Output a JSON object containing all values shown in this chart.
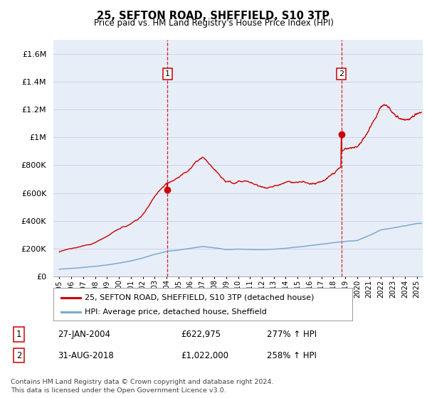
{
  "title": "25, SEFTON ROAD, SHEFFIELD, S10 3TP",
  "subtitle": "Price paid vs. HM Land Registry's House Price Index (HPI)",
  "legend_line1": "25, SEFTON ROAD, SHEFFIELD, S10 3TP (detached house)",
  "legend_line2": "HPI: Average price, detached house, Sheffield",
  "transaction1_label": "1",
  "transaction1_date": "27-JAN-2004",
  "transaction1_price": "£622,975",
  "transaction1_hpi": "277% ↑ HPI",
  "transaction1_year": 2004.07,
  "transaction1_value": 622975,
  "transaction2_label": "2",
  "transaction2_date": "31-AUG-2018",
  "transaction2_price": "£1,022,000",
  "transaction2_hpi": "258% ↑ HPI",
  "transaction2_year": 2018.67,
  "transaction2_value": 1022000,
  "footer1": "Contains HM Land Registry data © Crown copyright and database right 2024.",
  "footer2": "This data is licensed under the Open Government Licence v3.0.",
  "red_color": "#cc0000",
  "blue_color": "#7aaad0",
  "grid_color": "#c8d4e8",
  "background_color": "#ffffff",
  "plot_bg_color": "#e8eef8",
  "vline_color": "#cc0000",
  "ylim_max": 1700000,
  "xlim_min": 1994.5,
  "xlim_max": 2025.5
}
